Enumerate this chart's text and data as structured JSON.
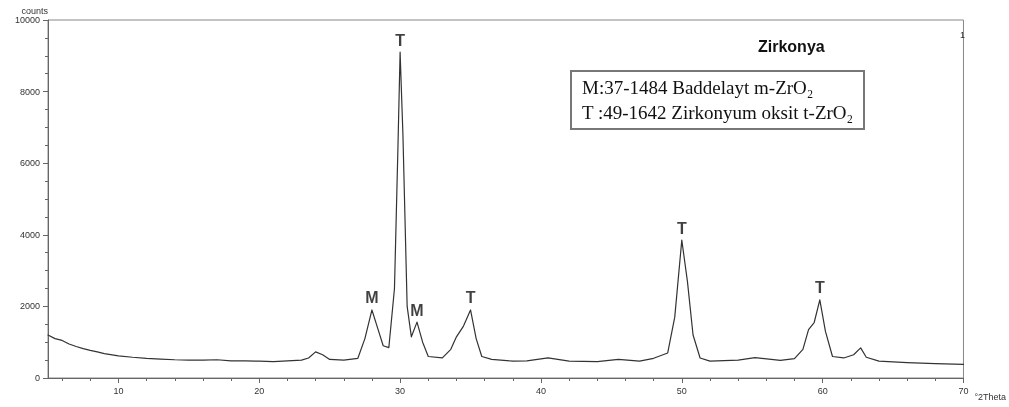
{
  "chart_data": {
    "type": "line",
    "title": "Zirkonya",
    "xlabel": "°2Theta",
    "ylabel": "counts",
    "x": [
      5,
      5.5,
      6,
      6.5,
      7,
      7.5,
      8,
      8.5,
      9,
      10,
      11,
      12,
      13,
      14,
      15,
      16,
      17,
      18,
      19,
      20,
      21,
      22,
      23,
      23.5,
      24,
      24.5,
      25,
      26,
      27,
      27.5,
      28,
      28.4,
      28.8,
      29.2,
      29.6,
      29.85,
      30,
      30.2,
      30.5,
      30.8,
      31.2,
      31.6,
      32,
      33,
      33.6,
      34,
      34.5,
      35,
      35.4,
      35.8,
      36.5,
      38,
      39,
      40.5,
      42,
      44,
      45.5,
      47,
      48,
      49,
      49.5,
      50,
      50.4,
      50.8,
      51.3,
      52,
      54,
      55.2,
      57,
      58,
      58.6,
      59,
      59.4,
      59.8,
      60.2,
      60.7,
      61.5,
      62.2,
      62.7,
      63.1,
      64,
      66,
      68,
      70
    ],
    "series": [
      {
        "color": "#333333",
        "values": [
          1200,
          1100,
          1050,
          950,
          880,
          820,
          770,
          730,
          680,
          620,
          580,
          550,
          530,
          510,
          500,
          500,
          510,
          480,
          480,
          470,
          460,
          480,
          500,
          560,
          730,
          650,
          520,
          500,
          550,
          1100,
          1900,
          1400,
          900,
          850,
          2500,
          6500,
          9100,
          6800,
          2000,
          1150,
          1560,
          1000,
          600,
          560,
          800,
          1150,
          1450,
          1900,
          1100,
          600,
          520,
          470,
          480,
          560,
          470,
          460,
          520,
          470,
          550,
          700,
          1700,
          3850,
          2700,
          1200,
          560,
          470,
          500,
          570,
          490,
          540,
          800,
          1350,
          1550,
          2180,
          1300,
          600,
          560,
          650,
          840,
          580,
          470,
          430,
          400,
          380
        ]
      }
    ],
    "xlim": [
      5,
      70
    ],
    "xticks": [
      10,
      20,
      30,
      40,
      50,
      60,
      70
    ],
    "ylim": [
      0,
      10000
    ],
    "yticks": [
      0,
      2000,
      4000,
      6000,
      8000,
      10000
    ],
    "grid": false,
    "marker": "none",
    "line_style": "solid",
    "annotations": [
      {
        "text": "M",
        "x": 28,
        "y": 1900
      },
      {
        "text": "T",
        "x": 30,
        "y": 9100
      },
      {
        "text": "M",
        "x": 31.2,
        "y": 1560
      },
      {
        "text": "T",
        "x": 35,
        "y": 1900
      },
      {
        "text": "T",
        "x": 50,
        "y": 3850
      },
      {
        "text": "T",
        "x": 59.8,
        "y": 2180
      },
      "M:37-1484 Baddelayt m-ZrO₂",
      "T :49-1642 Zirkonyum oksit t-ZrO₂",
      "1"
    ]
  }
}
